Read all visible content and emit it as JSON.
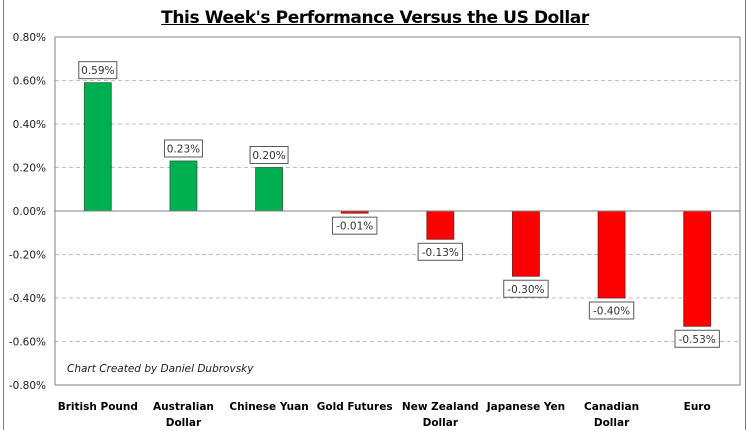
{
  "chart_data": {
    "type": "bar",
    "title": "This Week's Performance Versus the US Dollar",
    "xlabel": "",
    "ylabel": "",
    "ylim": [
      -0.8,
      0.8
    ],
    "yticks": [
      0.8,
      0.6,
      0.4,
      0.2,
      0.0,
      -0.2,
      -0.4,
      -0.6,
      -0.8
    ],
    "ytick_labels": [
      "0.80%",
      "0.60%",
      "0.40%",
      "0.20%",
      "0.00%",
      "-0.20%",
      "-0.40%",
      "-0.60%",
      "-0.80%"
    ],
    "grid": "horizontal-dashed",
    "legend": "none",
    "categories": [
      [
        "British Pound"
      ],
      [
        "Australian",
        "Dollar"
      ],
      [
        "Chinese Yuan"
      ],
      [
        "Gold Futures"
      ],
      [
        "New Zealand",
        "Dollar"
      ],
      [
        "Japanese Yen"
      ],
      [
        "Canadian",
        "Dollar"
      ],
      [
        "Euro"
      ]
    ],
    "values": [
      0.59,
      0.23,
      0.2,
      -0.01,
      -0.13,
      -0.3,
      -0.4,
      -0.53
    ],
    "data_labels": [
      "0.59%",
      "0.23%",
      "0.20%",
      "-0.01%",
      "-0.13%",
      "-0.30%",
      "-0.40%",
      "-0.53%"
    ],
    "colors": {
      "positive": "#00b050",
      "negative": "#ff0000"
    },
    "annotation": "Chart Created by Daniel Dubrovsky"
  }
}
